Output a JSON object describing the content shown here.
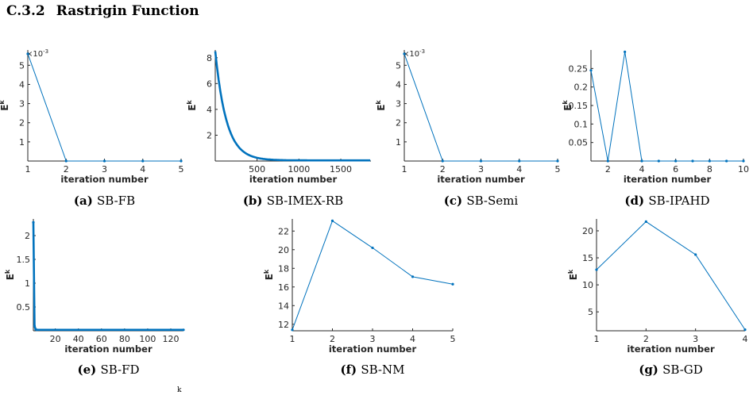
{
  "section": {
    "number": "C.3.2",
    "title": "Rastrigin Function"
  },
  "footnote_mark": "k",
  "panels": [
    {
      "id": "a",
      "caption_label": "(a)",
      "caption_text": "SB-FB",
      "chart_data": {
        "type": "line",
        "xlabel": "iteration number",
        "ylabel": "E^k",
        "exponent_label": "×10^{-3}",
        "xlim": [
          1,
          5
        ],
        "ylim": [
          0,
          5.8
        ],
        "xticks": [
          1,
          2,
          3,
          4,
          5
        ],
        "yticks": [
          1,
          2,
          3,
          4,
          5
        ],
        "x": [
          1,
          2,
          3,
          4,
          5
        ],
        "y": [
          5.6,
          0,
          0,
          0,
          0
        ],
        "color": "#0072BD",
        "markers": true
      }
    },
    {
      "id": "b",
      "caption_label": "(b)",
      "caption_text": "SB-IMEX-RB",
      "chart_data": {
        "type": "line",
        "xlabel": "iteration number",
        "ylabel": "E^k",
        "xlim": [
          1,
          1860
        ],
        "ylim": [
          0,
          8.6
        ],
        "xticks": [
          500,
          1000,
          1500
        ],
        "yticks": [
          2,
          4,
          6,
          8
        ],
        "curve": "exponential-decay",
        "y0": 8.5,
        "decay_rate": 0.0075,
        "floor": 0.05,
        "color": "#0072BD",
        "markers": false,
        "thick": true
      }
    },
    {
      "id": "c",
      "caption_label": "(c)",
      "caption_text": "SB-Semi",
      "chart_data": {
        "type": "line",
        "xlabel": "iteration number",
        "ylabel": "E^k",
        "exponent_label": "×10^{-3}",
        "xlim": [
          1,
          5
        ],
        "ylim": [
          0,
          5.8
        ],
        "xticks": [
          1,
          2,
          3,
          4,
          5
        ],
        "yticks": [
          1,
          2,
          3,
          4,
          5
        ],
        "x": [
          1,
          2,
          3,
          4,
          5
        ],
        "y": [
          5.6,
          0,
          0,
          0,
          0
        ],
        "color": "#0072BD",
        "markers": true
      }
    },
    {
      "id": "d",
      "caption_label": "(d)",
      "caption_text": "SB-IPAHD",
      "chart_data": {
        "type": "line",
        "xlabel": "iteration number",
        "ylabel": "E^k",
        "xlim": [
          1,
          10
        ],
        "ylim": [
          0,
          0.3
        ],
        "xticks": [
          2,
          4,
          6,
          8,
          10
        ],
        "yticks": [
          0.05,
          0.1,
          0.15,
          0.2,
          0.25
        ],
        "x": [
          1,
          2,
          3,
          4,
          5,
          6,
          7,
          8,
          9,
          10
        ],
        "y": [
          0.245,
          0,
          0.295,
          0,
          0,
          0,
          0,
          0,
          0,
          0
        ],
        "color": "#0072BD",
        "markers": true
      }
    },
    {
      "id": "e",
      "caption_label": "(e)",
      "caption_text": "SB-FD",
      "chart_data": {
        "type": "line",
        "xlabel": "iteration number",
        "ylabel": "E^k",
        "xlim": [
          1,
          131
        ],
        "ylim": [
          0,
          2.35
        ],
        "xticks": [
          20,
          40,
          60,
          80,
          100,
          120
        ],
        "yticks": [
          0.5,
          1,
          1.5,
          2
        ],
        "x": [
          1,
          2,
          3,
          4,
          131
        ],
        "y": [
          2.28,
          0.1,
          0.03,
          0.02,
          0.02
        ],
        "color": "#0072BD",
        "markers": true,
        "thick": true
      }
    },
    {
      "id": "f",
      "caption_label": "(f)",
      "caption_text": "SB-NM",
      "chart_data": {
        "type": "line",
        "xlabel": "iteration number",
        "ylabel": "E^k",
        "xlim": [
          1,
          5
        ],
        "ylim": [
          11.3,
          23.3
        ],
        "xticks": [
          1,
          2,
          3,
          4,
          5
        ],
        "yticks": [
          12,
          14,
          16,
          18,
          20,
          22
        ],
        "x": [
          1,
          2,
          3,
          4,
          5
        ],
        "y": [
          11.4,
          23.1,
          20.2,
          17.1,
          16.3
        ],
        "color": "#0072BD",
        "markers": true
      }
    },
    {
      "id": "g",
      "caption_label": "(g)",
      "caption_text": "SB-GD",
      "chart_data": {
        "type": "line",
        "xlabel": "iteration number",
        "ylabel": "E^k",
        "xlim": [
          1,
          4
        ],
        "ylim": [
          1.5,
          22.2
        ],
        "xticks": [
          1,
          2,
          3,
          4
        ],
        "yticks": [
          5,
          10,
          15,
          20
        ],
        "x": [
          1,
          2,
          3,
          4
        ],
        "y": [
          12.8,
          21.7,
          15.6,
          1.7
        ],
        "color": "#0072BD",
        "markers": true
      }
    }
  ]
}
